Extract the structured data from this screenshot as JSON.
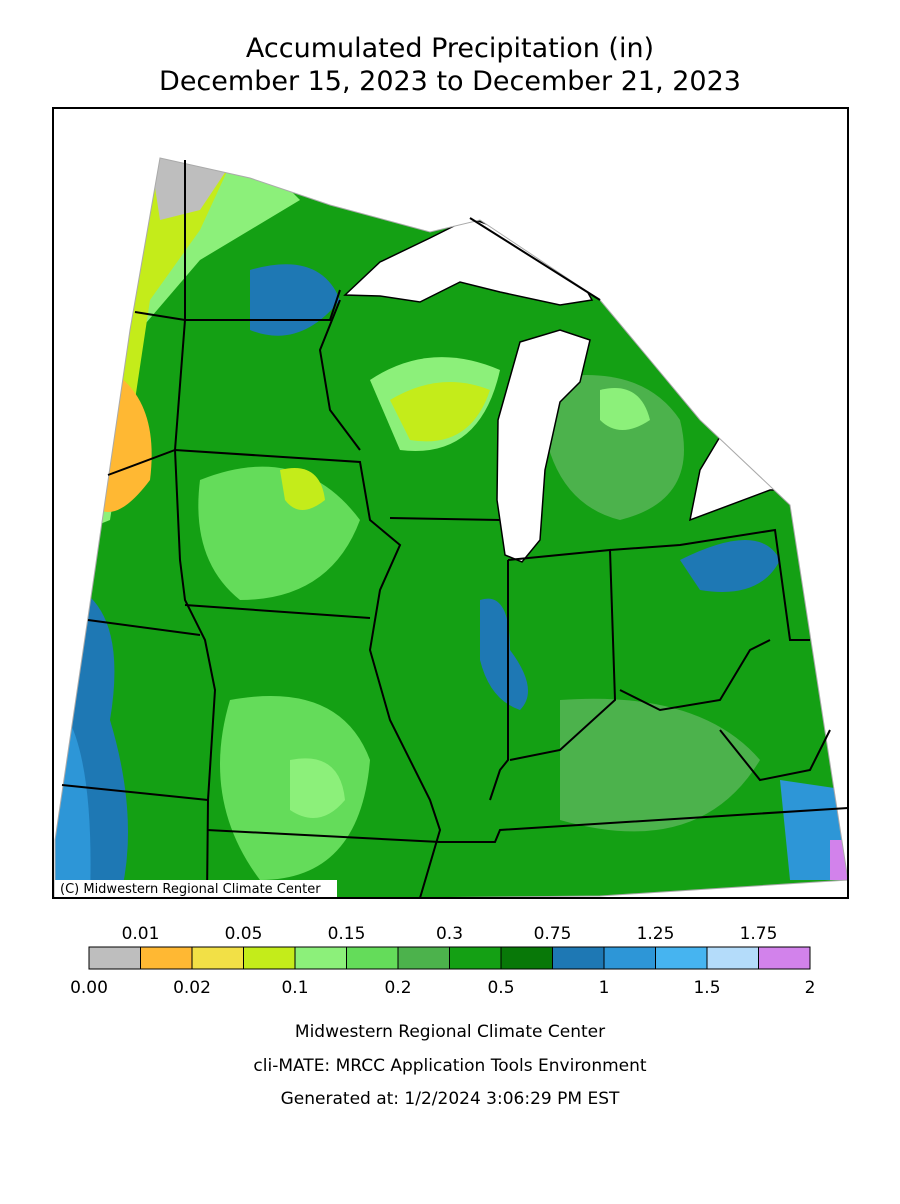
{
  "title": [
    "Accumulated Precipitation (in)",
    "December 15, 2023 to December 21, 2023"
  ],
  "copyright": "(C) Midwestern Regional Climate Center",
  "legend": {
    "colors": [
      "#bebebe",
      "#ffb833",
      "#f2e046",
      "#c4ec1a",
      "#8cf07a",
      "#64dc5a",
      "#4cb24c",
      "#14a014",
      "#087808",
      "#1e78b4",
      "#2d96d7",
      "#46b4f0",
      "#b4dcfa",
      "#d282eb"
    ],
    "top_labels": [
      "0.01",
      "0.05",
      "0.15",
      "0.3",
      "0.75",
      "1.25",
      "1.75"
    ],
    "bottom_labels": [
      "0.00",
      "0.02",
      "0.1",
      "0.2",
      "0.5",
      "1",
      "1.5",
      "2"
    ]
  },
  "footer": [
    "Midwestern Regional Climate Center",
    "cli-MATE: MRCC Application Tools Environment",
    "Generated at: 1/2/2024 3:06:29 PM EST"
  ]
}
